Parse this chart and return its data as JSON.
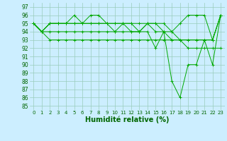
{
  "background_color": "#cceeff",
  "grid_color": "#99ccbb",
  "line_color": "#00aa00",
  "xlabel": "Humidité relative (%)",
  "xlabel_fontsize": 7,
  "yticks": [
    85,
    86,
    87,
    88,
    89,
    90,
    91,
    92,
    93,
    94,
    95,
    96,
    97
  ],
  "ylim": [
    84.5,
    97.5
  ],
  "xlim": [
    -0.5,
    23.5
  ],
  "xticks": [
    0,
    1,
    2,
    3,
    4,
    5,
    6,
    7,
    8,
    9,
    10,
    11,
    12,
    13,
    14,
    15,
    16,
    17,
    18,
    19,
    20,
    21,
    22,
    23
  ],
  "series": [
    [
      95,
      94,
      95,
      95,
      95,
      96,
      95,
      96,
      96,
      95,
      94,
      95,
      95,
      94,
      95,
      95,
      95,
      94,
      95,
      96,
      96,
      96,
      93,
      96
    ],
    [
      95,
      94,
      95,
      95,
      95,
      95,
      95,
      95,
      95,
      95,
      95,
      95,
      95,
      95,
      95,
      94,
      94,
      93,
      93,
      93,
      93,
      93,
      93,
      96
    ],
    [
      95,
      94,
      95,
      95,
      95,
      95,
      95,
      95,
      95,
      95,
      95,
      95,
      94,
      94,
      95,
      95,
      94,
      94,
      93,
      93,
      93,
      93,
      93,
      96
    ],
    [
      95,
      94,
      94,
      94,
      94,
      94,
      94,
      94,
      94,
      94,
      94,
      94,
      94,
      94,
      94,
      92,
      94,
      88,
      86,
      90,
      90,
      93,
      90,
      96
    ],
    [
      95,
      94,
      93,
      93,
      93,
      93,
      93,
      93,
      93,
      93,
      93,
      93,
      93,
      93,
      93,
      93,
      93,
      93,
      93,
      92,
      92,
      92,
      92,
      92
    ]
  ]
}
